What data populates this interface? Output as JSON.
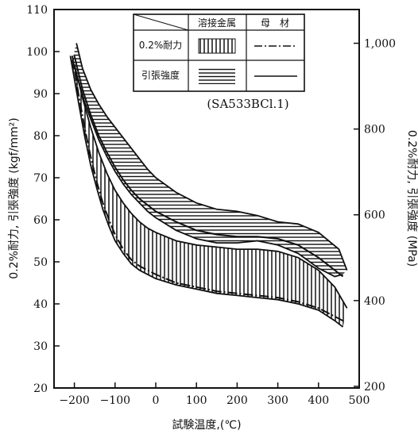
{
  "chart_data": {
    "type": "line",
    "title": "",
    "xlabel": "試験温度,(℃)",
    "ylabel_left": "0.2%耐力, 引張強度 (kgf/mm²)",
    "ylabel_right": "0.2%耐力, 引張強度 (MPa)",
    "xlim": [
      -250,
      500
    ],
    "ylim": [
      20,
      110
    ],
    "x_ticks": [
      -200,
      -100,
      0,
      100,
      200,
      300,
      400,
      500
    ],
    "x_tick_labels": [
      "−200",
      "−100",
      "0",
      "100",
      "200",
      "300",
      "400",
      "500"
    ],
    "y_ticks": [
      20,
      30,
      40,
      50,
      60,
      70,
      80,
      90,
      100,
      110
    ],
    "y2_ticks_mpa": [
      200,
      400,
      600,
      800,
      1000
    ],
    "y2_tick_labels": [
      "200",
      "400",
      "600",
      "800",
      "1,000"
    ],
    "grid": false,
    "legend": {
      "placement": "top-center",
      "header": [
        "",
        "溶接金属",
        "母　材"
      ],
      "rows": [
        {
          "label": "0.2%耐力",
          "weld_metal": "vertical-hatch",
          "base_metal": "dash-dot line"
        },
        {
          "label": "引張強度",
          "weld_metal": "horizontal-hatch",
          "base_metal": "solid line"
        }
      ]
    },
    "annotation": "(SA533BCl.1)",
    "bands": [
      {
        "name": "溶接金属 引張強度",
        "hatch": "horizontal",
        "upper": {
          "x": [
            -195,
            -180,
            -160,
            -140,
            -120,
            -100,
            -80,
            -60,
            -40,
            -20,
            0,
            50,
            100,
            150,
            200,
            250,
            300,
            350,
            400,
            450,
            470
          ],
          "y": [
            102,
            96,
            91,
            87.5,
            84.5,
            82,
            79.5,
            77,
            74.5,
            72,
            70,
            66.5,
            64,
            62.5,
            62,
            61,
            59.5,
            59,
            57,
            53,
            48
          ]
        },
        "lower": {
          "x": [
            -205,
            -190,
            -175,
            -160,
            -140,
            -120,
            -100,
            -80,
            -60,
            -40,
            -20,
            0,
            50,
            100,
            150,
            200,
            250,
            300,
            350,
            400,
            440,
            460
          ],
          "y": [
            98,
            93,
            88,
            84,
            79,
            75,
            71.5,
            68.5,
            66,
            64,
            62,
            60.5,
            57.5,
            55.5,
            54.5,
            54.5,
            55,
            54,
            52,
            48.5,
            46.5,
            47
          ]
        }
      },
      {
        "name": "溶接金属 0.2%耐力",
        "hatch": "vertical",
        "upper": {
          "x": [
            -200,
            -180,
            -160,
            -140,
            -120,
            -100,
            -80,
            -60,
            -40,
            -20,
            0,
            50,
            100,
            150,
            200,
            250,
            300,
            350,
            400,
            440,
            470
          ],
          "y": [
            97,
            89,
            82,
            76,
            71,
            67,
            64,
            61.5,
            59.5,
            58,
            57,
            55,
            54,
            53.5,
            53,
            53,
            52.5,
            51,
            48,
            44,
            39
          ]
        },
        "lower": {
          "x": [
            -210,
            -190,
            -175,
            -160,
            -145,
            -130,
            -115,
            -100,
            -80,
            -60,
            -40,
            -20,
            0,
            50,
            100,
            150,
            200,
            250,
            300,
            350,
            400,
            440,
            460
          ],
          "y": [
            99,
            88,
            80,
            73,
            67.5,
            62.5,
            58.5,
            55,
            52,
            49.5,
            48,
            47,
            46,
            44.5,
            43.5,
            42.5,
            42,
            41.5,
            41,
            40,
            38.5,
            36,
            34.5
          ]
        }
      }
    ],
    "series": [
      {
        "name": "母材 引張強度",
        "style": "solid",
        "x": [
          -200,
          -180,
          -160,
          -140,
          -120,
          -100,
          -80,
          -60,
          -40,
          -20,
          0,
          50,
          100,
          150,
          200,
          250,
          300,
          350,
          400,
          440,
          460
        ],
        "y": [
          99,
          91,
          85,
          80,
          76,
          72.5,
          69.5,
          67,
          65,
          63.5,
          62,
          59.5,
          57.5,
          56.5,
          56,
          56,
          55.5,
          54,
          51,
          48,
          46.5
        ]
      },
      {
        "name": "母材 0.2%耐力",
        "style": "dash-dot",
        "x": [
          -205,
          -190,
          -175,
          -160,
          -145,
          -130,
          -115,
          -100,
          -80,
          -60,
          -40,
          -20,
          0,
          50,
          100,
          150,
          200,
          250,
          300,
          350,
          400,
          440,
          460
        ],
        "y": [
          99,
          90,
          82,
          75,
          69,
          64,
          60,
          56.5,
          53,
          50.5,
          49,
          48,
          47,
          45,
          44,
          43,
          42.5,
          42,
          41.5,
          40.5,
          39,
          37,
          36
        ]
      }
    ]
  }
}
